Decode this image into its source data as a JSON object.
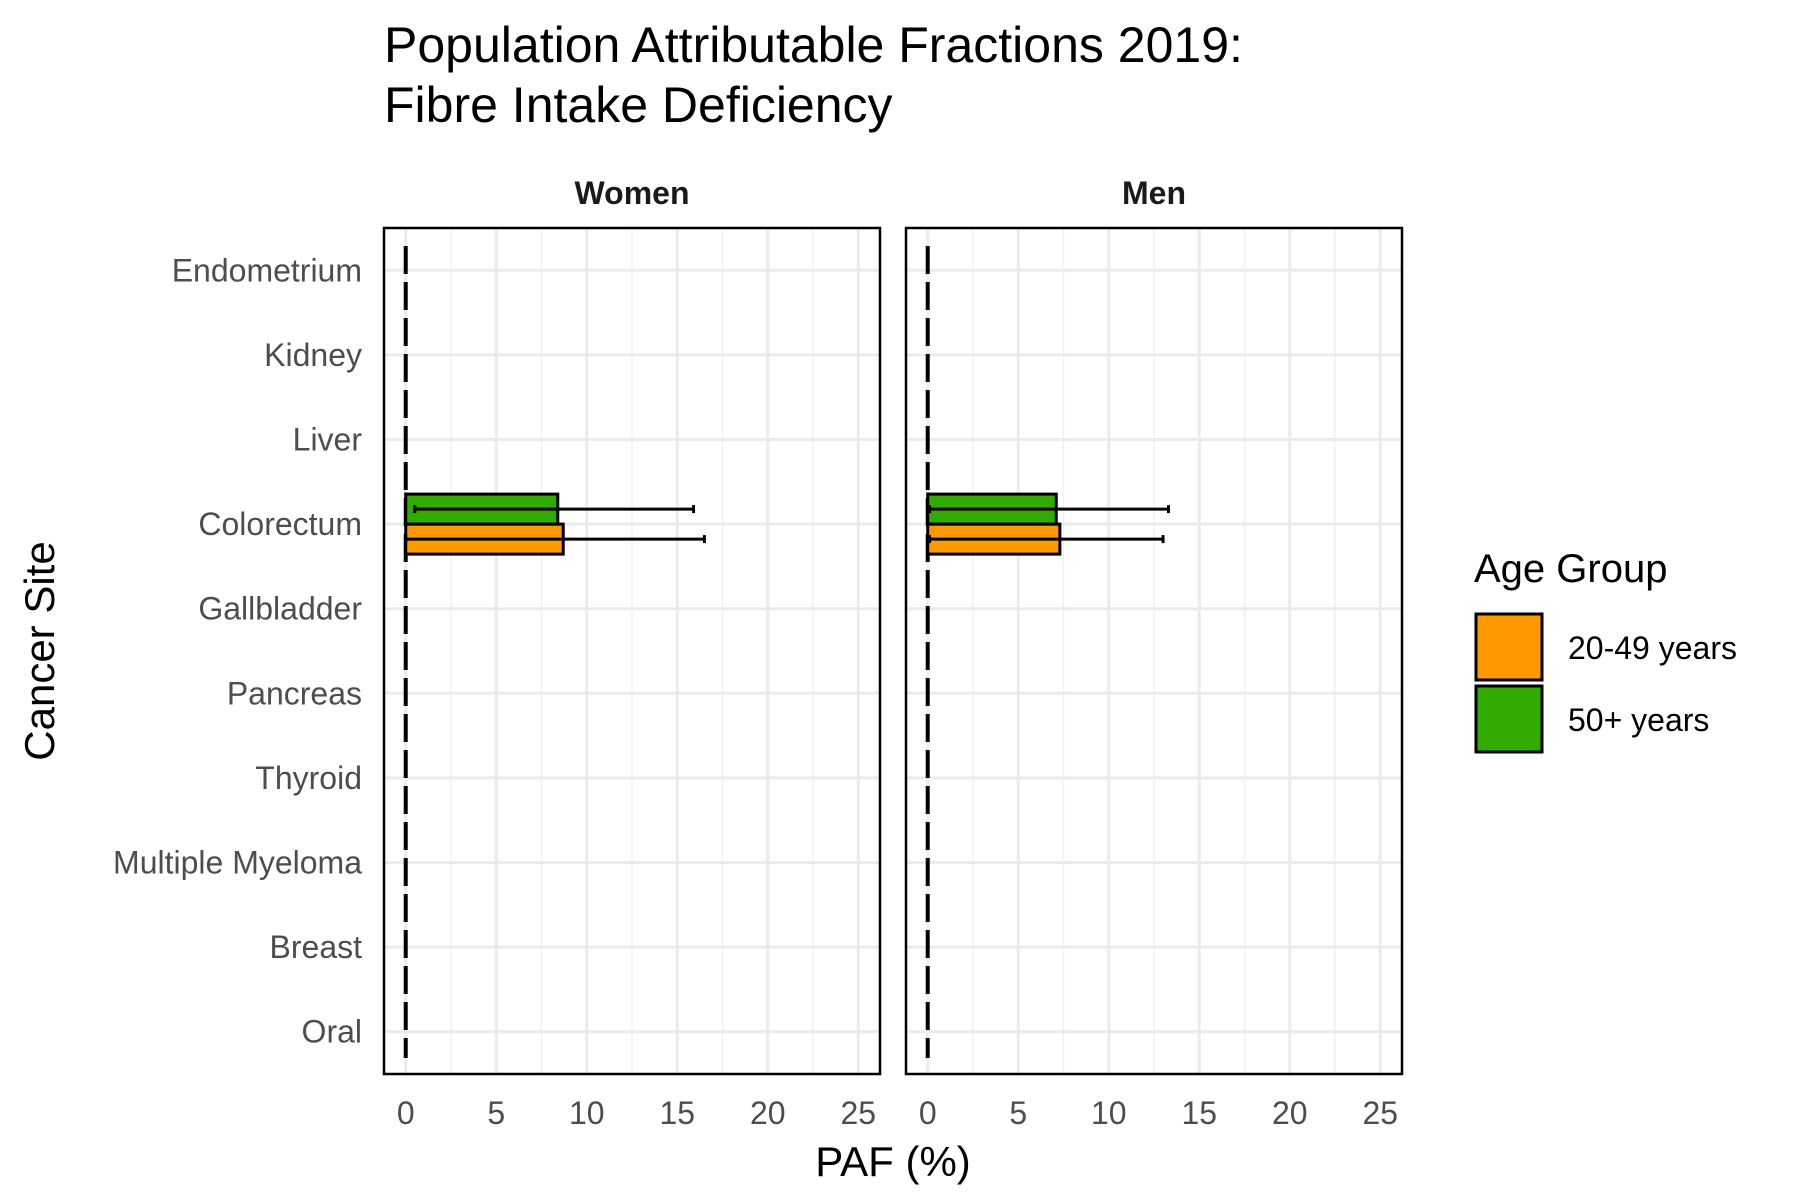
{
  "chart_data": {
    "type": "bar",
    "orientation": "horizontal",
    "title": "Population Attributable Fractions 2019:\nFibre Intake Deficiency",
    "xlabel": "PAF (%)",
    "ylabel": "Cancer Site",
    "xlim": [
      -1.2,
      26.2
    ],
    "xticks": [
      0,
      5,
      10,
      15,
      20,
      25
    ],
    "grid": true,
    "reference_line": {
      "x": 0,
      "style": "dashed"
    },
    "categories": [
      "Endometrium",
      "Kidney",
      "Liver",
      "Colorectum",
      "Gallbladder",
      "Pancreas",
      "Thyroid",
      "Multiple Myeloma",
      "Breast",
      "Oral"
    ],
    "legend": {
      "title": "Age Group",
      "position": "right",
      "entries": [
        {
          "name": "20-49 years",
          "color": "#FF9900"
        },
        {
          "name": "50+ years",
          "color": "#33AA00"
        }
      ]
    },
    "panels": [
      {
        "name": "Women",
        "series": [
          {
            "name": "20-49 years",
            "values": [
              0,
              0,
              0,
              8.7,
              0,
              0,
              0,
              0,
              0,
              0
            ],
            "ci_low": [
              null,
              null,
              null,
              0.0,
              null,
              null,
              null,
              null,
              null,
              null
            ],
            "ci_high": [
              null,
              null,
              null,
              16.5,
              null,
              null,
              null,
              null,
              null,
              null
            ]
          },
          {
            "name": "50+ years",
            "values": [
              0,
              0,
              0,
              8.4,
              0,
              0,
              0,
              0,
              0,
              0
            ],
            "ci_low": [
              null,
              null,
              null,
              0.5,
              null,
              null,
              null,
              null,
              null,
              null
            ],
            "ci_high": [
              null,
              null,
              null,
              15.9,
              null,
              null,
              null,
              null,
              null,
              null
            ]
          }
        ]
      },
      {
        "name": "Men",
        "series": [
          {
            "name": "20-49 years",
            "values": [
              0,
              0,
              0,
              7.3,
              0,
              0,
              0,
              0,
              0,
              0
            ],
            "ci_low": [
              null,
              null,
              null,
              0.1,
              null,
              null,
              null,
              null,
              null,
              null
            ],
            "ci_high": [
              null,
              null,
              null,
              13.0,
              null,
              null,
              null,
              null,
              null,
              null
            ]
          },
          {
            "name": "50+ years",
            "values": [
              0,
              0,
              0,
              7.1,
              0,
              0,
              0,
              0,
              0,
              0
            ],
            "ci_low": [
              null,
              null,
              null,
              0.1,
              null,
              null,
              null,
              null,
              null,
              null
            ],
            "ci_high": [
              null,
              null,
              null,
              13.3,
              null,
              null,
              null,
              null,
              null,
              null
            ]
          }
        ]
      }
    ]
  }
}
